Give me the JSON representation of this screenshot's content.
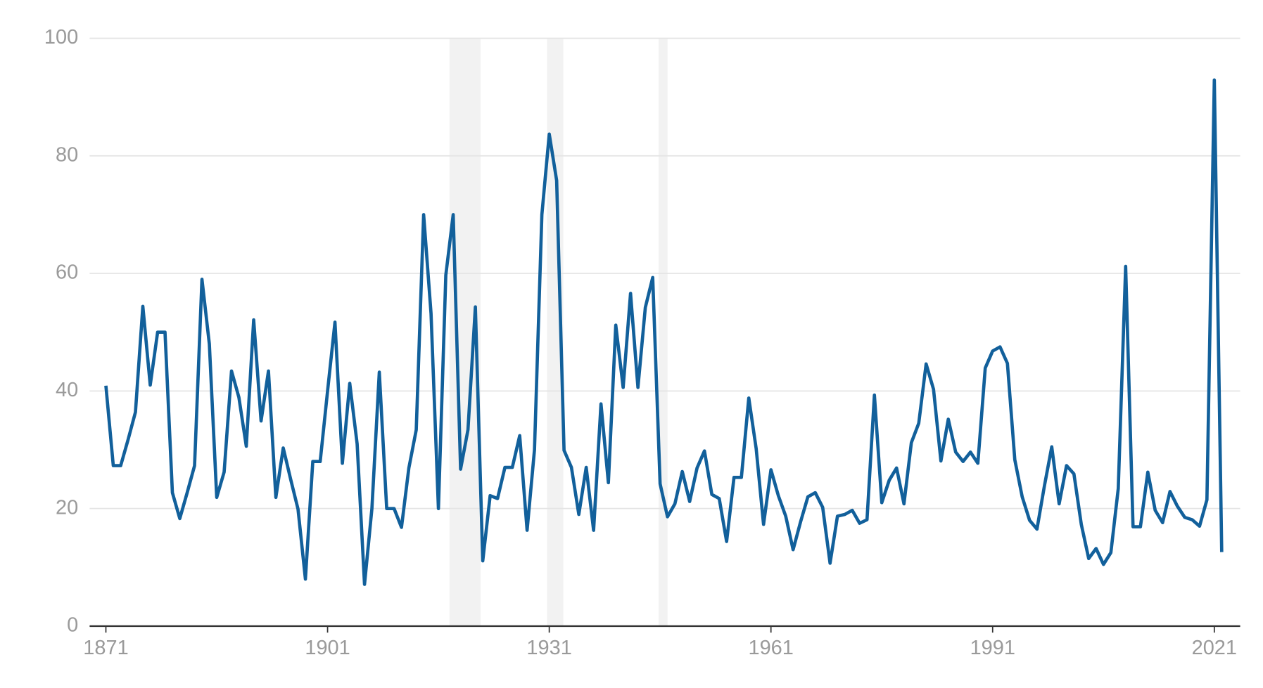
{
  "chart_data": {
    "type": "line",
    "x": [
      1871,
      1872,
      1873,
      1874,
      1875,
      1876,
      1877,
      1878,
      1879,
      1880,
      1881,
      1882,
      1883,
      1884,
      1885,
      1886,
      1887,
      1888,
      1889,
      1890,
      1891,
      1892,
      1893,
      1894,
      1895,
      1896,
      1897,
      1898,
      1899,
      1900,
      1901,
      1902,
      1903,
      1904,
      1905,
      1906,
      1907,
      1908,
      1909,
      1910,
      1911,
      1912,
      1913,
      1914,
      1915,
      1916,
      1917,
      1918,
      1919,
      1920,
      1921,
      1922,
      1923,
      1924,
      1925,
      1926,
      1927,
      1928,
      1929,
      1930,
      1931,
      1932,
      1933,
      1934,
      1935,
      1936,
      1937,
      1938,
      1939,
      1940,
      1941,
      1942,
      1943,
      1944,
      1945,
      1946,
      1947,
      1948,
      1949,
      1950,
      1951,
      1952,
      1953,
      1954,
      1955,
      1956,
      1957,
      1958,
      1959,
      1960,
      1961,
      1962,
      1963,
      1964,
      1965,
      1966,
      1967,
      1968,
      1969,
      1970,
      1971,
      1972,
      1973,
      1974,
      1975,
      1976,
      1977,
      1978,
      1979,
      1980,
      1981,
      1982,
      1983,
      1984,
      1985,
      1986,
      1987,
      1988,
      1989,
      1990,
      1991,
      1992,
      1993,
      1994,
      1995,
      1996,
      1997,
      1998,
      1999,
      2000,
      2001,
      2002,
      2003,
      2004,
      2005,
      2006,
      2007,
      2008,
      2009,
      2010,
      2011,
      2012,
      2013,
      2014,
      2015,
      2016,
      2017,
      2018,
      2019,
      2020,
      2021,
      2022
    ],
    "series": [
      {
        "color": "#12609b",
        "values": [
          40.9,
          27.3,
          27.3,
          31.7,
          36.4,
          54.4,
          41,
          50,
          50,
          22.7,
          18.3,
          22.7,
          27.3,
          59,
          48,
          21.9,
          26.2,
          43.4,
          38.9,
          30.6,
          52.1,
          34.9,
          43.4,
          21.9,
          30.3,
          25,
          19.9,
          8,
          28,
          28,
          40,
          51.7,
          27.7,
          41.3,
          31,
          7.1,
          20,
          43.2,
          20,
          20,
          16.8,
          26.9,
          33.4,
          70,
          53.2,
          20,
          59.7,
          70,
          26.7,
          33.4,
          54.3,
          11.1,
          22.2,
          21.7,
          27,
          27,
          32.4,
          16.3,
          30,
          70,
          83.7,
          75.8,
          29.9,
          27,
          19,
          27,
          16.3,
          37.8,
          24.4,
          51.2,
          40.6,
          56.6,
          40.6,
          54.2,
          59.3,
          24.2,
          18.6,
          20.8,
          26.3,
          21.2,
          26.9,
          29.8,
          22.4,
          21.7,
          14.4,
          25.3,
          25.3,
          38.8,
          30.2,
          17.3,
          26.6,
          22.2,
          18.7,
          13,
          17.7,
          22,
          22.7,
          20.2,
          10.7,
          18.7,
          19,
          19.7,
          17.5,
          18.1,
          39.3,
          21,
          24.8,
          26.9,
          20.8,
          31.2,
          34.5,
          44.6,
          40.3,
          28.1,
          35.2,
          29.6,
          28,
          29.6,
          27.7,
          43.9,
          46.8,
          47.5,
          44.7,
          28.3,
          22,
          18,
          16.5,
          23.8,
          30.5,
          20.8,
          27.3,
          25.9,
          17.3,
          11.5,
          13.2,
          10.5,
          12.5,
          23.4,
          61.2,
          16.9,
          16.9,
          26.2,
          19.7,
          17.6,
          22.9,
          20.4,
          18.5,
          18.1,
          17,
          21.5,
          92.9,
          12.6
        ]
      }
    ],
    "shaded_periods": [
      [
        1917.5,
        1921.7
      ],
      [
        1930.7,
        1932.9
      ],
      [
        1945.8,
        1947
      ]
    ],
    "shade_color": "#f2f2f2",
    "xlim": [
      1868.8,
      2024.5
    ],
    "xticks": [
      1871,
      1901,
      1931,
      1961,
      1991,
      2021
    ],
    "ylim": [
      0,
      100
    ],
    "yticks": [
      0,
      20,
      40,
      60,
      80,
      100
    ],
    "grid": true
  }
}
